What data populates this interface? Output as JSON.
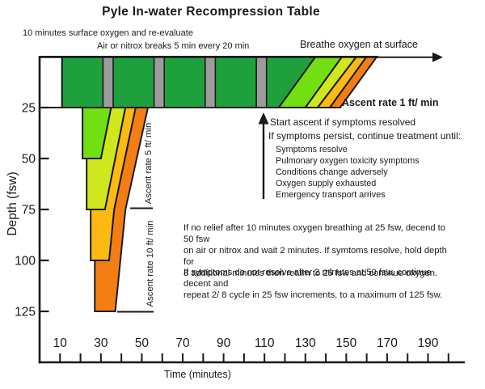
{
  "header": {
    "title": "Pyle In-water Recompression Table"
  },
  "top_labels": {
    "surface_oxygen": "10 minutes surface oxygen and re-evaluate",
    "air_breaks": "Air or nitrox breaks 5 min every 20 min",
    "breathe_surface": "Breathe oxygen at surface"
  },
  "ascent_labels": {
    "rate1": "Ascent rate 1 ft/ min",
    "rate5": "Ascent rate 5 ft/ min",
    "rate10": "Ascent rate 10 ft/ min"
  },
  "symptom_block": {
    "start_line": "Start ascent if symptoms resolved",
    "persist_line": "If symptoms persist, continue treatment until:",
    "items": [
      "Symptoms resolve",
      "Pulmonary oxygen toxicity symptoms",
      "Conditions change adversely",
      "Oxygen supply exhausted",
      "Emergency transport arrives"
    ]
  },
  "notes": {
    "para1": "If no relief after 10 minutes oxygen breathing at 25 fsw, decend to 50 fsw\non air or nitrox and wait 2 minutes. If symtoms resolve, hold depth for\n8 additional minutes then return to 25 fsw and continue oxygen.",
    "para2": "If symptoms do not resolve after 2 minutes at 50 fsw, continue decent and\nrepeat 2/ 8 cycle in 25 fsw increments, to a maximum of 125 fsw."
  },
  "chart_data": {
    "type": "area",
    "title": "Pyle In-water Recompression Table",
    "xlabel": "Time (minutes)",
    "ylabel": "Depth (fsw)",
    "x_range": [
      0,
      208
    ],
    "y_range": [
      0,
      150
    ],
    "x_major_ticks": [
      10,
      30,
      50,
      70,
      90,
      110,
      130,
      150,
      170,
      190
    ],
    "x_minor_tick_step": 10,
    "x_minor_tick_max": 200,
    "y_ticks": [
      25,
      50,
      75,
      100,
      125
    ],
    "line_color": "#1a1a1a",
    "colors": {
      "oxygen_band_green": "#1ea13c",
      "air_break_gray": "#9c9c9c",
      "depth50_green": "#72df12",
      "depth75_yellowgreen": "#cfe71d",
      "depth100_amber": "#fcba12",
      "depth125_orange": "#f57e14"
    },
    "layers": [
      {
        "name": "surface-interval",
        "color": "#ffffff",
        "points": [
          [
            0,
            0
          ],
          [
            11,
            0
          ],
          [
            11,
            25
          ],
          [
            0,
            25
          ]
        ]
      },
      {
        "name": "oxygen-25fsw-band",
        "color": "#1ea13c",
        "points": [
          [
            11,
            0
          ],
          [
            135,
            0
          ],
          [
            117,
            25
          ],
          [
            11,
            25
          ]
        ]
      },
      {
        "name": "final-ascent-stripe-50",
        "color": "#72df12",
        "points": [
          [
            117,
            25
          ],
          [
            135,
            0
          ],
          [
            148,
            0
          ],
          [
            130,
            25
          ]
        ]
      },
      {
        "name": "final-ascent-stripe-75",
        "color": "#cfe71d",
        "points": [
          [
            130,
            25
          ],
          [
            148,
            0
          ],
          [
            155,
            0
          ],
          [
            136,
            25
          ]
        ]
      },
      {
        "name": "final-ascent-stripe-100",
        "color": "#fcba12",
        "points": [
          [
            136,
            25
          ],
          [
            155,
            0
          ],
          [
            160,
            0
          ],
          [
            142,
            25
          ]
        ]
      },
      {
        "name": "final-ascent-stripe-125",
        "color": "#f57e14",
        "points": [
          [
            142,
            25
          ],
          [
            160,
            0
          ],
          [
            165,
            0
          ],
          [
            147,
            25
          ]
        ]
      },
      {
        "name": "step-50fsw",
        "color": "#72df12",
        "points": [
          [
            21,
            25
          ],
          [
            21,
            50
          ],
          [
            30,
            50
          ],
          [
            35,
            25
          ]
        ]
      },
      {
        "name": "step-75fsw",
        "color": "#cfe71d",
        "points": [
          [
            23,
            50
          ],
          [
            23,
            75
          ],
          [
            32,
            75
          ],
          [
            42,
            25
          ],
          [
            35,
            25
          ],
          [
            30,
            50
          ]
        ]
      },
      {
        "name": "step-100fsw",
        "color": "#fcba12",
        "points": [
          [
            25,
            75
          ],
          [
            25,
            100
          ],
          [
            34,
            100
          ],
          [
            36.5,
            75
          ],
          [
            47,
            25
          ],
          [
            42,
            25
          ],
          [
            32,
            75
          ]
        ]
      },
      {
        "name": "step-125fsw",
        "color": "#f57e14",
        "points": [
          [
            27,
            100
          ],
          [
            27,
            125
          ],
          [
            37,
            125
          ],
          [
            39.5,
            100
          ],
          [
            42,
            75
          ],
          [
            53,
            25
          ],
          [
            47,
            25
          ],
          [
            36.5,
            75
          ],
          [
            34,
            100
          ]
        ]
      }
    ],
    "air_breaks": {
      "color": "#9c9c9c",
      "width_min": 5,
      "depth": [
        0,
        25
      ],
      "starts": [
        31,
        56,
        81,
        106
      ]
    },
    "ascent_rates_ft_per_min": {
      "surface_to_25": 1,
      "25_to_75": 5,
      "75_to_125": 10
    }
  }
}
